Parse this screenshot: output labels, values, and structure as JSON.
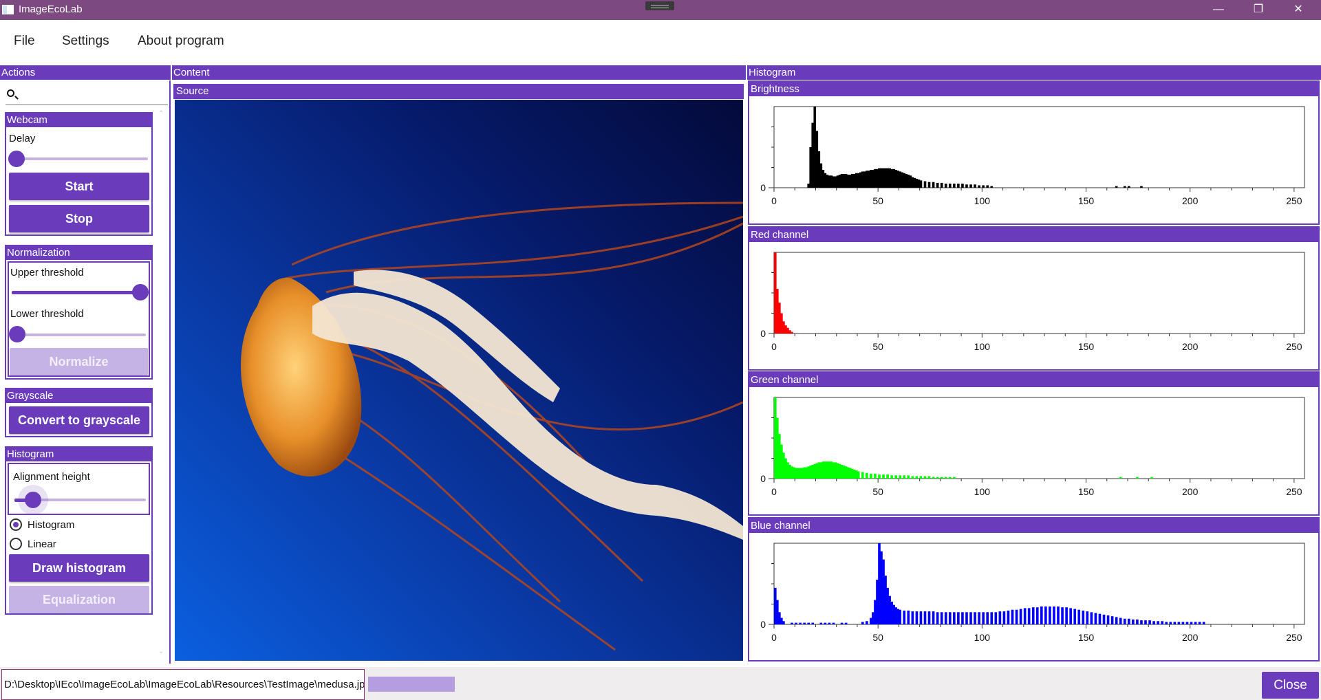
{
  "window": {
    "title": "ImageEcoLab",
    "minimize": "—",
    "restore": "❐",
    "close": "✕"
  },
  "menu": {
    "items": [
      "File",
      "Settings",
      "About program"
    ]
  },
  "sections": {
    "actions": "Actions",
    "content": "Content",
    "histogram": "Histogram",
    "source": "Source"
  },
  "search": {
    "value": "",
    "placeholder": ""
  },
  "webcam": {
    "title": "Webcam",
    "delay_label": "Delay",
    "delay_value": 0,
    "start": "Start",
    "stop": "Stop"
  },
  "normalization": {
    "title": "Normalization",
    "upper_label": "Upper threshold",
    "upper_value": 1.0,
    "lower_label": "Lower threshold",
    "lower_value": 0.0,
    "normalize": "Normalize"
  },
  "grayscale": {
    "title": "Grayscale",
    "convert": "Convert to grayscale"
  },
  "histogram_panel": {
    "title": "Histogram",
    "alignment_label": "Alignment height",
    "alignment_value": 0.22,
    "radio_histogram": "Histogram",
    "radio_linear": "Linear",
    "selected": "Histogram",
    "draw": "Draw histogram",
    "equalize": "Equalization"
  },
  "status": {
    "path": "D:\\Desktop\\IEco\\ImageEcoLab\\ImageEcoLab\\Resources\\TestImage\\medusa.jpg",
    "progress": 1.0,
    "close": "Close"
  },
  "colors": {
    "accent": "#6a3cbc",
    "titlebar": "#7c4a80",
    "disabled": "#c6b3e6"
  },
  "chart_data": [
    {
      "type": "bar",
      "title": "Brightness",
      "color": "#000000",
      "x_ticks": [
        0,
        50,
        100,
        150,
        200,
        250
      ],
      "y_tick": "0",
      "xlim": [
        0,
        255
      ],
      "ylim": [
        0,
        1
      ],
      "bins": [
        [
          16,
          0.05
        ],
        [
          17,
          0.5
        ],
        [
          18,
          0.8
        ],
        [
          19,
          1.0
        ],
        [
          20,
          0.7
        ],
        [
          21,
          0.45
        ],
        [
          22,
          0.3
        ],
        [
          23,
          0.22
        ],
        [
          24,
          0.18
        ],
        [
          25,
          0.16
        ],
        [
          26,
          0.15
        ],
        [
          27,
          0.15
        ],
        [
          28,
          0.14
        ],
        [
          29,
          0.14
        ],
        [
          30,
          0.15
        ],
        [
          31,
          0.16
        ],
        [
          32,
          0.17
        ],
        [
          33,
          0.17
        ],
        [
          34,
          0.17
        ],
        [
          35,
          0.16
        ],
        [
          36,
          0.16
        ],
        [
          37,
          0.17
        ],
        [
          38,
          0.17
        ],
        [
          39,
          0.18
        ],
        [
          40,
          0.18
        ],
        [
          41,
          0.19
        ],
        [
          42,
          0.2
        ],
        [
          43,
          0.2
        ],
        [
          44,
          0.21
        ],
        [
          45,
          0.21
        ],
        [
          46,
          0.22
        ],
        [
          47,
          0.22
        ],
        [
          48,
          0.23
        ],
        [
          49,
          0.23
        ],
        [
          50,
          0.24
        ],
        [
          51,
          0.24
        ],
        [
          52,
          0.24
        ],
        [
          53,
          0.24
        ],
        [
          54,
          0.24
        ],
        [
          55,
          0.24
        ],
        [
          56,
          0.23
        ],
        [
          57,
          0.23
        ],
        [
          58,
          0.22
        ],
        [
          59,
          0.21
        ],
        [
          60,
          0.2
        ],
        [
          61,
          0.19
        ],
        [
          62,
          0.18
        ],
        [
          63,
          0.17
        ],
        [
          64,
          0.16
        ],
        [
          65,
          0.15
        ],
        [
          66,
          0.13
        ],
        [
          67,
          0.12
        ],
        [
          68,
          0.11
        ],
        [
          69,
          0.1
        ],
        [
          70,
          0.09
        ],
        [
          72,
          0.08
        ],
        [
          74,
          0.07
        ],
        [
          76,
          0.07
        ],
        [
          78,
          0.06
        ],
        [
          80,
          0.06
        ],
        [
          82,
          0.05
        ],
        [
          84,
          0.05
        ],
        [
          86,
          0.05
        ],
        [
          88,
          0.05
        ],
        [
          90,
          0.05
        ],
        [
          92,
          0.04
        ],
        [
          94,
          0.04
        ],
        [
          96,
          0.04
        ],
        [
          98,
          0.03
        ],
        [
          100,
          0.03
        ],
        [
          102,
          0.03
        ],
        [
          104,
          0.02
        ],
        [
          164,
          0.02
        ],
        [
          168,
          0.02
        ],
        [
          170,
          0.02
        ],
        [
          176,
          0.02
        ]
      ]
    },
    {
      "type": "bar",
      "title": "Red channel",
      "color": "#ff0000",
      "x_ticks": [
        0,
        50,
        100,
        150,
        200,
        250
      ],
      "y_tick": "0",
      "xlim": [
        0,
        255
      ],
      "ylim": [
        0,
        1
      ],
      "bins": [
        [
          0,
          1.0
        ],
        [
          1,
          0.55
        ],
        [
          2,
          0.38
        ],
        [
          3,
          0.25
        ],
        [
          4,
          0.15
        ],
        [
          5,
          0.1
        ],
        [
          6,
          0.07
        ],
        [
          7,
          0.04
        ],
        [
          8,
          0.02
        ]
      ]
    },
    {
      "type": "bar",
      "title": "Green channel",
      "color": "#00ff00",
      "x_ticks": [
        0,
        50,
        100,
        150,
        200,
        250
      ],
      "y_tick": "0",
      "xlim": [
        0,
        255
      ],
      "ylim": [
        0,
        1
      ],
      "bins": [
        [
          0,
          1.0
        ],
        [
          1,
          0.75
        ],
        [
          2,
          0.55
        ],
        [
          3,
          0.42
        ],
        [
          4,
          0.32
        ],
        [
          5,
          0.25
        ],
        [
          6,
          0.2
        ],
        [
          7,
          0.17
        ],
        [
          8,
          0.15
        ],
        [
          9,
          0.14
        ],
        [
          10,
          0.13
        ],
        [
          11,
          0.13
        ],
        [
          12,
          0.13
        ],
        [
          13,
          0.13
        ],
        [
          14,
          0.14
        ],
        [
          15,
          0.14
        ],
        [
          16,
          0.15
        ],
        [
          17,
          0.16
        ],
        [
          18,
          0.17
        ],
        [
          19,
          0.18
        ],
        [
          20,
          0.19
        ],
        [
          21,
          0.2
        ],
        [
          22,
          0.2
        ],
        [
          23,
          0.21
        ],
        [
          24,
          0.21
        ],
        [
          25,
          0.21
        ],
        [
          26,
          0.21
        ],
        [
          27,
          0.21
        ],
        [
          28,
          0.2
        ],
        [
          29,
          0.2
        ],
        [
          30,
          0.19
        ],
        [
          31,
          0.18
        ],
        [
          32,
          0.17
        ],
        [
          33,
          0.16
        ],
        [
          34,
          0.15
        ],
        [
          35,
          0.14
        ],
        [
          36,
          0.13
        ],
        [
          37,
          0.12
        ],
        [
          38,
          0.11
        ],
        [
          39,
          0.1
        ],
        [
          40,
          0.09
        ],
        [
          42,
          0.08
        ],
        [
          44,
          0.07
        ],
        [
          46,
          0.06
        ],
        [
          48,
          0.06
        ],
        [
          50,
          0.05
        ],
        [
          52,
          0.05
        ],
        [
          54,
          0.05
        ],
        [
          56,
          0.04
        ],
        [
          58,
          0.04
        ],
        [
          60,
          0.04
        ],
        [
          62,
          0.04
        ],
        [
          64,
          0.04
        ],
        [
          66,
          0.03
        ],
        [
          68,
          0.03
        ],
        [
          70,
          0.03
        ],
        [
          72,
          0.03
        ],
        [
          74,
          0.03
        ],
        [
          76,
          0.02
        ],
        [
          78,
          0.02
        ],
        [
          80,
          0.02
        ],
        [
          82,
          0.02
        ],
        [
          84,
          0.02
        ],
        [
          86,
          0.02
        ],
        [
          166,
          0.02
        ],
        [
          174,
          0.02
        ],
        [
          181,
          0.02
        ]
      ]
    },
    {
      "type": "bar",
      "title": "Blue channel",
      "color": "#0000ff",
      "x_ticks": [
        0,
        50,
        100,
        150,
        200,
        250
      ],
      "y_tick": "0",
      "xlim": [
        0,
        255
      ],
      "ylim": [
        0,
        1
      ],
      "bins": [
        [
          0,
          0.45
        ],
        [
          1,
          0.3
        ],
        [
          2,
          0.15
        ],
        [
          3,
          0.08
        ],
        [
          4,
          0.04
        ],
        [
          8,
          0.02
        ],
        [
          10,
          0.02
        ],
        [
          12,
          0.02
        ],
        [
          14,
          0.02
        ],
        [
          16,
          0.02
        ],
        [
          18,
          0.02
        ],
        [
          22,
          0.02
        ],
        [
          24,
          0.02
        ],
        [
          26,
          0.02
        ],
        [
          28,
          0.02
        ],
        [
          32,
          0.02
        ],
        [
          34,
          0.02
        ],
        [
          42,
          0.03
        ],
        [
          44,
          0.04
        ],
        [
          46,
          0.08
        ],
        [
          47,
          0.15
        ],
        [
          48,
          0.3
        ],
        [
          49,
          0.55
        ],
        [
          50,
          1.0
        ],
        [
          51,
          0.9
        ],
        [
          52,
          0.8
        ],
        [
          53,
          0.6
        ],
        [
          54,
          0.45
        ],
        [
          55,
          0.35
        ],
        [
          56,
          0.28
        ],
        [
          57,
          0.24
        ],
        [
          58,
          0.21
        ],
        [
          59,
          0.19
        ],
        [
          60,
          0.18
        ],
        [
          62,
          0.17
        ],
        [
          64,
          0.17
        ],
        [
          66,
          0.16
        ],
        [
          68,
          0.16
        ],
        [
          70,
          0.16
        ],
        [
          72,
          0.16
        ],
        [
          74,
          0.16
        ],
        [
          76,
          0.16
        ],
        [
          78,
          0.15
        ],
        [
          80,
          0.15
        ],
        [
          82,
          0.15
        ],
        [
          84,
          0.15
        ],
        [
          86,
          0.15
        ],
        [
          88,
          0.15
        ],
        [
          90,
          0.15
        ],
        [
          92,
          0.15
        ],
        [
          94,
          0.15
        ],
        [
          96,
          0.15
        ],
        [
          98,
          0.15
        ],
        [
          100,
          0.15
        ],
        [
          102,
          0.15
        ],
        [
          104,
          0.15
        ],
        [
          106,
          0.15
        ],
        [
          108,
          0.16
        ],
        [
          110,
          0.16
        ],
        [
          112,
          0.17
        ],
        [
          114,
          0.18
        ],
        [
          116,
          0.18
        ],
        [
          118,
          0.19
        ],
        [
          120,
          0.2
        ],
        [
          122,
          0.2
        ],
        [
          124,
          0.21
        ],
        [
          126,
          0.21
        ],
        [
          128,
          0.22
        ],
        [
          130,
          0.22
        ],
        [
          132,
          0.22
        ],
        [
          134,
          0.22
        ],
        [
          136,
          0.22
        ],
        [
          138,
          0.21
        ],
        [
          140,
          0.21
        ],
        [
          142,
          0.2
        ],
        [
          144,
          0.19
        ],
        [
          146,
          0.18
        ],
        [
          148,
          0.17
        ],
        [
          150,
          0.16
        ],
        [
          152,
          0.15
        ],
        [
          154,
          0.14
        ],
        [
          156,
          0.13
        ],
        [
          158,
          0.12
        ],
        [
          160,
          0.11
        ],
        [
          162,
          0.1
        ],
        [
          164,
          0.09
        ],
        [
          166,
          0.08
        ],
        [
          168,
          0.07
        ],
        [
          170,
          0.07
        ],
        [
          172,
          0.06
        ],
        [
          174,
          0.06
        ],
        [
          176,
          0.05
        ],
        [
          178,
          0.05
        ],
        [
          180,
          0.05
        ],
        [
          182,
          0.04
        ],
        [
          184,
          0.04
        ],
        [
          186,
          0.04
        ],
        [
          188,
          0.03
        ],
        [
          190,
          0.03
        ],
        [
          192,
          0.03
        ],
        [
          194,
          0.03
        ],
        [
          196,
          0.03
        ],
        [
          198,
          0.03
        ],
        [
          200,
          0.03
        ],
        [
          202,
          0.03
        ],
        [
          204,
          0.03
        ],
        [
          206,
          0.03
        ]
      ]
    }
  ]
}
